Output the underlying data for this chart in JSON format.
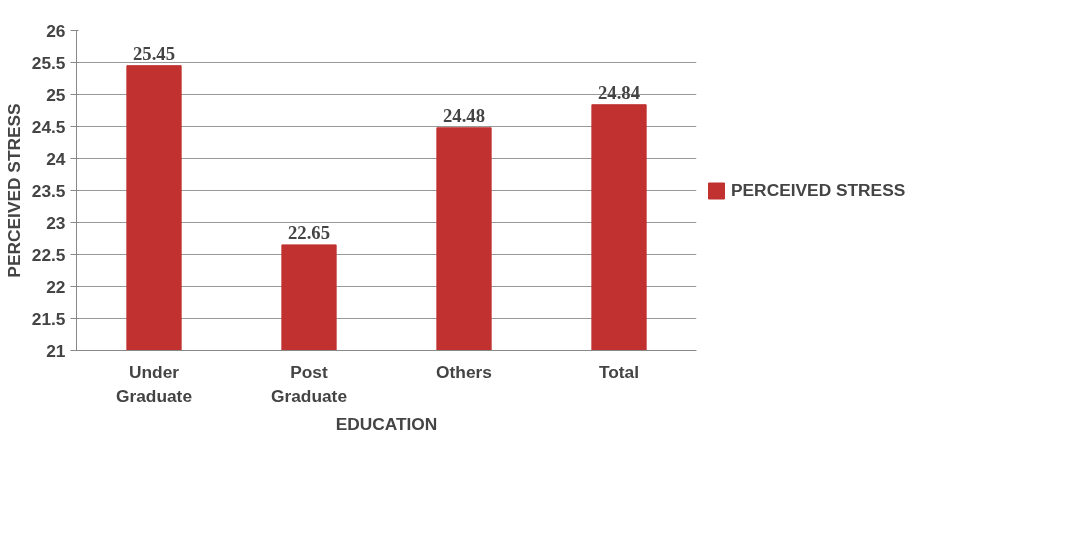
{
  "chart_data": {
    "type": "bar",
    "xlabel": "EDUCATION",
    "ylabel": "PERCEIVED STRESS",
    "categories": [
      "Under Graduate",
      "Post Graduate",
      "Others",
      "Total"
    ],
    "series": [
      {
        "name": "PERCEIVED STRESS",
        "color": "#c0312f",
        "values": [
          25.45,
          22.65,
          24.48,
          24.84
        ]
      }
    ],
    "ylim": [
      21,
      26
    ],
    "yticks": [
      21,
      21.5,
      22,
      22.5,
      23,
      23.5,
      24,
      24.5,
      25,
      25.5,
      26
    ],
    "grid": "y",
    "legend": "right",
    "data_labels": true
  }
}
